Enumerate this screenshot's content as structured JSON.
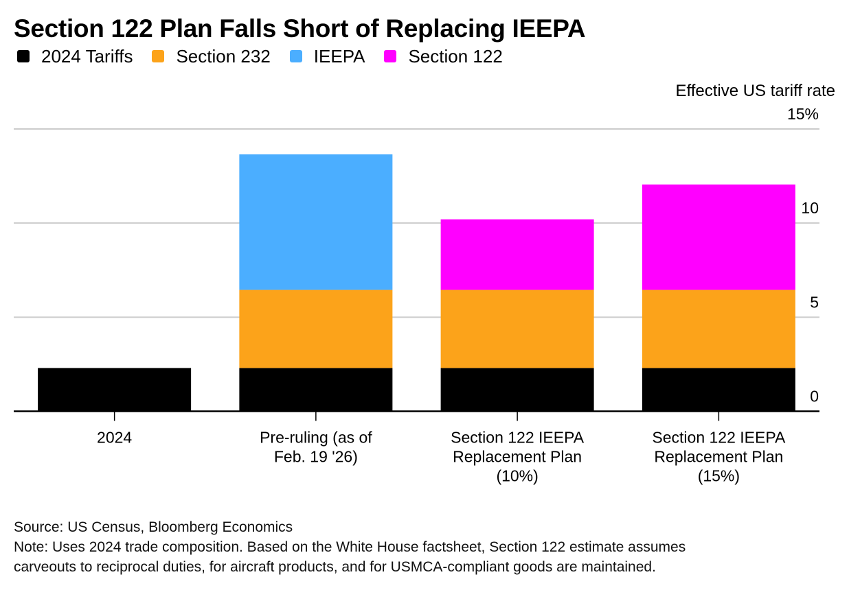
{
  "title": "Section 122 Plan Falls Short of Replacing IEEPA",
  "legend": [
    {
      "label": "2024 Tariffs",
      "color": "#000000"
    },
    {
      "label": "Section 232",
      "color": "#FCA31A"
    },
    {
      "label": "IEEPA",
      "color": "#4BAEFF"
    },
    {
      "label": "Section 122",
      "color": "#FF00FF"
    }
  ],
  "footer": {
    "source": "Source: US Census, Bloomberg Economics",
    "note_line1": "Note: Uses 2024 trade composition. Based on the White House factsheet, Section 122 estimate assumes",
    "note_line2": "carveouts to reciprocal duties, for aircraft products, and for USMCA-compliant goods are maintained."
  },
  "chart_data": {
    "type": "bar",
    "stacked": true,
    "title": "Section 122 Plan Falls Short of Replacing IEEPA",
    "ylabel": "Effective US tariff rate",
    "xlabel": "",
    "y_unit_suffix": "%",
    "ylim": [
      0,
      15
    ],
    "yticks": [
      0,
      5,
      10,
      15
    ],
    "ytick_labels": [
      "0",
      "5",
      "10",
      "15%"
    ],
    "y_axis_position": "right",
    "grid": true,
    "legend_position": "top-left",
    "categories": [
      [
        "2024"
      ],
      [
        "Pre-ruling (as of",
        "Feb. 19 '26)"
      ],
      [
        "Section 122 IEEPA",
        "Replacement Plan",
        "(10%)"
      ],
      [
        "Section 122 IEEPA",
        "Replacement Plan",
        "(15%)"
      ]
    ],
    "series": [
      {
        "name": "2024 Tariffs",
        "color": "#000000",
        "values": [
          2.3,
          2.3,
          2.3,
          2.3
        ]
      },
      {
        "name": "Section 232",
        "color": "#FCA31A",
        "values": [
          0,
          4.15,
          4.15,
          4.15
        ]
      },
      {
        "name": "IEEPA",
        "color": "#4BAEFF",
        "values": [
          0,
          7.2,
          0,
          0
        ]
      },
      {
        "name": "Section 122",
        "color": "#FF00FF",
        "values": [
          0,
          0,
          3.75,
          5.6
        ]
      }
    ]
  }
}
